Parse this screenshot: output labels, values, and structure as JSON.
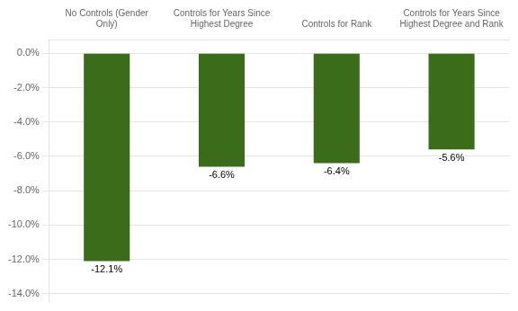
{
  "chart_data": {
    "type": "bar",
    "categories": [
      "No Controls (Gender\nOnly)",
      "Controls for Years Since\nHighest Degree",
      "Controls for Rank",
      "Controls for Years Since\nHighest Degree and Rank"
    ],
    "values": [
      -12.1,
      -6.6,
      -6.4,
      -5.6
    ],
    "value_labels": [
      "-12.1%",
      "-6.6%",
      "-6.4%",
      "-5.6%"
    ],
    "data_labels": true,
    "color": "#3a6c1a",
    "ylim": [
      -14.5,
      0.8
    ],
    "yticks": [
      {
        "value": 0.0,
        "label": "0.0%"
      },
      {
        "value": -2.0,
        "label": "-2.0%"
      },
      {
        "value": -4.0,
        "label": "-4.0%"
      },
      {
        "value": -6.0,
        "label": "-6.0%"
      },
      {
        "value": -8.0,
        "label": "-8.0%"
      },
      {
        "value": -10.0,
        "label": "-10.0%"
      },
      {
        "value": -12.0,
        "label": "-12.0%"
      },
      {
        "value": -14.0,
        "label": "-14.0%"
      }
    ],
    "grid": true
  }
}
